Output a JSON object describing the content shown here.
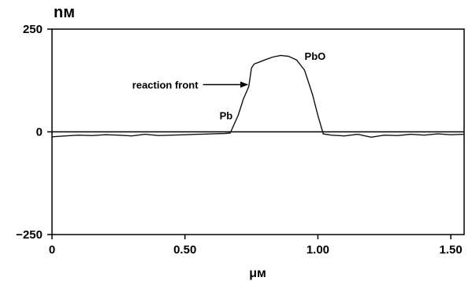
{
  "chart_data": {
    "type": "line",
    "ylabel": "nм",
    "xlabel": "μм",
    "xlim": [
      0,
      1.55
    ],
    "ylim": [
      -250,
      250
    ],
    "x_ticks": [
      0,
      0.5,
      1.0,
      1.5
    ],
    "x_tick_labels": [
      "0",
      "0.50",
      "1.00",
      "1.50"
    ],
    "y_ticks": [
      -250,
      0,
      250
    ],
    "y_tick_labels": [
      "−250",
      "0",
      "250"
    ],
    "zero_line": true,
    "grid": false,
    "series": [
      {
        "x": [
          0,
          0.05,
          0.1,
          0.15,
          0.2,
          0.25,
          0.3,
          0.35,
          0.4,
          0.45,
          0.5,
          0.55,
          0.6,
          0.65,
          0.67,
          0.7,
          0.72,
          0.74,
          0.75,
          0.76,
          0.78,
          0.8,
          0.83,
          0.86,
          0.89,
          0.92,
          0.95,
          0.98,
          1.0,
          1.02,
          1.05,
          1.1,
          1.15,
          1.2,
          1.25,
          1.3,
          1.35,
          1.4,
          1.45,
          1.5,
          1.55
        ],
        "y": [
          -12,
          -10,
          -8,
          -9,
          -7,
          -8,
          -10,
          -6,
          -9,
          -8,
          -7,
          -6,
          -5,
          -4,
          -3,
          40,
          80,
          110,
          155,
          165,
          170,
          175,
          182,
          186,
          184,
          175,
          150,
          90,
          40,
          -5,
          -8,
          -10,
          -6,
          -13,
          -8,
          -9,
          -6,
          -8,
          -5,
          -7,
          -6
        ]
      }
    ],
    "annotations": [
      {
        "text": "reaction front",
        "x": 0.55,
        "y": 115,
        "arrow_to": [
          0.735,
          115
        ]
      },
      {
        "text": "Pb",
        "x": 0.63,
        "y": 40
      },
      {
        "text": "PbO",
        "x": 0.95,
        "y": 185
      }
    ]
  }
}
